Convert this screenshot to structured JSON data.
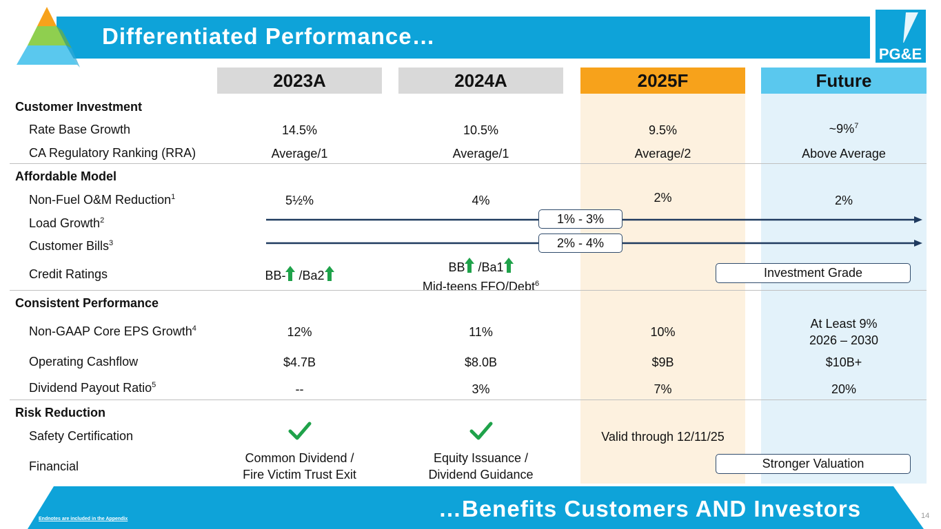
{
  "header": {
    "title": "Differentiated Performance…"
  },
  "logo": {
    "text": "PG&E"
  },
  "columns": {
    "y2023": "2023A",
    "y2024": "2024A",
    "y2025": "2025F",
    "future": "Future"
  },
  "sections": {
    "customer_investment": "Customer Investment",
    "affordable_model": "Affordable Model",
    "consistent_performance": "Consistent Performance",
    "risk_reduction": "Risk Reduction"
  },
  "rows": {
    "rate_base": {
      "label": "Rate Base Growth",
      "v2023": "14.5%",
      "v2024": "10.5%",
      "v2025": "9.5%",
      "future": "~9%",
      "future_note": "7"
    },
    "cpuc_rank": {
      "label": "CA Regulatory Ranking (RRA)",
      "v2023": "Average/1",
      "v2024": "Average/1",
      "v2025": "Average/2",
      "future": "Above Average"
    },
    "om_reduction": {
      "label": "Non-Fuel O&M Reduction",
      "note": "1",
      "v2023": "5½%",
      "v2024": "4%",
      "v2025": "2%",
      "future": "2%"
    },
    "load_growth": {
      "label": "Load Growth",
      "note": "2",
      "range": "1% - 3%"
    },
    "customer_bills": {
      "label": "Customer Bills",
      "note": "3",
      "range": "2% - 4%"
    },
    "credit_ratings": {
      "label": "Credit Ratings",
      "v2023_a": "BB-",
      "v2023_b": "/Ba2",
      "v2024_a": "BB",
      "v2024_b": "/Ba1",
      "v2024_line2": "Mid-teens FFO/Debt",
      "v2024_note": "6",
      "future": "Investment Grade"
    },
    "eps_growth": {
      "label": "Non-GAAP Core EPS Growth",
      "note": "4",
      "v2023": "12%",
      "v2024": "11%",
      "v2025": "10%",
      "future_line1": "At Least 9%",
      "future_line2": "2026 – 2030"
    },
    "cashflow": {
      "label": "Operating Cashflow",
      "v2023": "$4.7B",
      "v2024": "$8.0B",
      "v2025": "$9B",
      "future": "$10B+"
    },
    "dividend": {
      "label": "Dividend Payout Ratio",
      "note": "5",
      "v2023": "--",
      "v2024": "3%",
      "v2025": "7%",
      "future": "20%"
    },
    "safety": {
      "label": "Safety Certification",
      "v2025": "Valid through 12/11/25"
    },
    "financial": {
      "label": "Financial",
      "v2023_line1": "Common Dividend /",
      "v2023_line2": "Fire Victim Trust Exit",
      "v2024_line1": "Equity Issuance /",
      "v2024_line2": "Dividend Guidance",
      "future": "Stronger Valuation"
    }
  },
  "footer": {
    "tagline": "…Benefits Customers AND Investors",
    "endnote": "Endnotes are included in the Appendix",
    "page": "14"
  },
  "colors": {
    "title_blue": "#0ea3d9",
    "orange": "#f7a21b",
    "light_blue": "#5ac8ee",
    "green": "#1fa24a",
    "navy": "#1f3a5f"
  }
}
